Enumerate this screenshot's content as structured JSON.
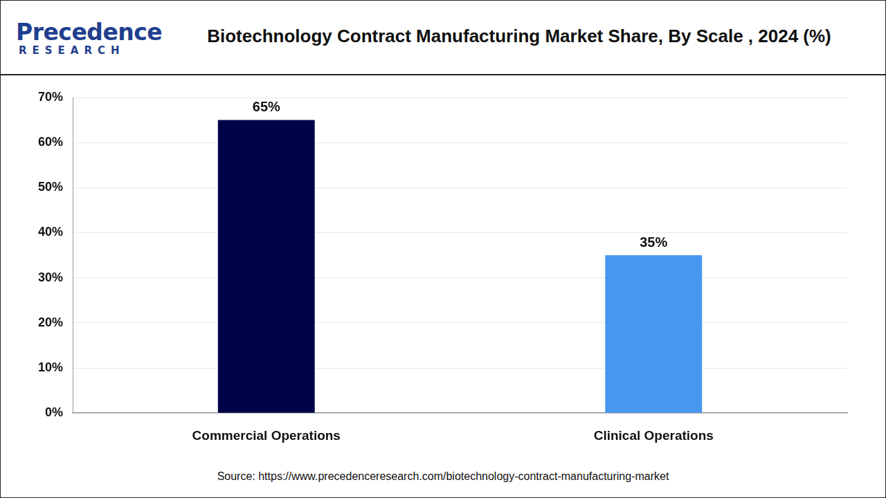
{
  "chart_data": {
    "type": "bar",
    "title": "Biotechnology Contract Manufacturing Market Share, By Scale , 2024 (%)",
    "logo": [
      "Precedence",
      "RESEARCH"
    ],
    "source": "Source: https://www.precedenceresearch.com/biotechnology-contract-manufacturing-market",
    "categories": [
      "Commercial Operations",
      "Clinical Operations"
    ],
    "values": [
      65,
      35
    ],
    "value_labels": [
      "65%",
      "35%"
    ],
    "colors": [
      "#000348",
      "#4796f0"
    ],
    "ylim": [
      0,
      70
    ],
    "yticks": [
      {
        "value": 0,
        "label": "0%"
      },
      {
        "value": 10,
        "label": "10%"
      },
      {
        "value": 20,
        "label": "20%"
      },
      {
        "value": 30,
        "label": "30%"
      },
      {
        "value": 40,
        "label": "40%"
      },
      {
        "value": 50,
        "label": "50%"
      },
      {
        "value": 60,
        "label": "60%"
      },
      {
        "value": 70,
        "label": "70%"
      }
    ],
    "grid": true,
    "data_labels": true
  }
}
